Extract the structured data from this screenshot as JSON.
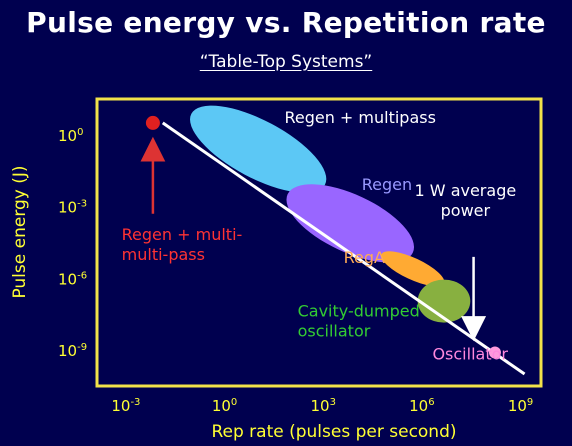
{
  "title": "Pulse energy vs. Repetition rate",
  "subtitle": "“Table-Top Systems”",
  "colors": {
    "background": "#00004f",
    "frame": "#f2e24a",
    "axis_text": "#ffff33",
    "line": "#ffffff"
  },
  "chart_data": {
    "type": "scatter",
    "xlabel": "Rep rate (pulses per second)",
    "ylabel": "Pulse energy (J)",
    "xscale": "log",
    "yscale": "log",
    "xlim_exp": [
      -4,
      9.5
    ],
    "ylim_exp": [
      -10.5,
      1.5
    ],
    "xticks": [
      {
        "base": "10",
        "exp": "-3",
        "v": -3
      },
      {
        "base": "10",
        "exp": "0",
        "v": 0
      },
      {
        "base": "10",
        "exp": "3",
        "v": 3
      },
      {
        "base": "10",
        "exp": "6",
        "v": 6
      },
      {
        "base": "10",
        "exp": "9",
        "v": 9
      }
    ],
    "yticks": [
      {
        "base": "10",
        "exp": "0",
        "v": 0
      },
      {
        "base": "10",
        "exp": "-3",
        "v": -3
      },
      {
        "base": "10",
        "exp": "-6",
        "v": -6
      },
      {
        "base": "10",
        "exp": "-9",
        "v": -9
      }
    ],
    "trend_line": {
      "from": [
        -2,
        0.5
      ],
      "to": [
        9,
        -10
      ]
    },
    "regions": [
      {
        "key": "regen_multipass",
        "label": "Regen + multipass",
        "color": "#5cc8f5",
        "cx": 0.9,
        "cy": -0.6,
        "rx": 2.3,
        "ry": 1.2,
        "angle": 28
      },
      {
        "key": "regen",
        "label": "Regen",
        "color": "#9966ff",
        "cx": 3.7,
        "cy": -3.7,
        "rx": 2.1,
        "ry": 1.2,
        "angle": 25
      },
      {
        "key": "rega",
        "label": "RegA",
        "color": "#ffaa33",
        "cx": 5.6,
        "cy": -5.6,
        "rx": 1.05,
        "ry": 0.45,
        "angle": 25
      },
      {
        "key": "cavity",
        "label": "Cavity-dumped oscillator",
        "color": "#88b040",
        "cx": 6.55,
        "cy": -6.95,
        "rx": 0.8,
        "ry": 0.9,
        "angle": 0
      }
    ],
    "points": [
      {
        "key": "regen_multi_multi_pass",
        "label": "Regen + multi-multi-pass",
        "color": "#e02020",
        "x": -2.3,
        "y": 0.5,
        "r": 7
      },
      {
        "key": "oscillator",
        "label": "Oscillator",
        "color": "#ff99dd",
        "x": 8.1,
        "y": -9.1,
        "r": 6
      }
    ],
    "annotations": [
      {
        "key": "regen_multipass_label",
        "lines": [
          "Regen + multipass"
        ],
        "color": "#ffffff",
        "x": 1.7,
        "y": 0.5
      },
      {
        "key": "regen_label",
        "lines": [
          "Regen"
        ],
        "color": "#9999ff",
        "x": 4.05,
        "y": -2.3
      },
      {
        "key": "rega_label",
        "lines": [
          "RegA"
        ],
        "color": "#ffaa55",
        "x": 3.5,
        "y": -5.35
      },
      {
        "key": "cavity_label",
        "lines": [
          "Cavity-dumped",
          "oscillator"
        ],
        "color": "#33cc33",
        "x": 2.1,
        "y": -7.6
      },
      {
        "key": "oscillator_label",
        "lines": [
          "Oscillator"
        ],
        "color": "#ff88dd",
        "x": 6.2,
        "y": -9.4
      },
      {
        "key": "red_label",
        "lines": [
          "Regen + multi-",
          "multi-pass"
        ],
        "color": "#ff3333",
        "x": -3.25,
        "y": -4.4
      },
      {
        "key": "power_label",
        "lines": [
          "1 W average",
          "power"
        ],
        "color": "#ffffff",
        "x": 7.2,
        "y": -2.55
      }
    ],
    "arrows": [
      {
        "key": "red_arrow",
        "color": "#dd3333",
        "from": [
          -2.3,
          -3.3
        ],
        "to": [
          -2.3,
          -0.6
        ]
      },
      {
        "key": "power_arrow",
        "color": "#ffffff",
        "from": [
          7.45,
          -5.1
        ],
        "to": [
          7.45,
          -8.1
        ]
      }
    ]
  }
}
